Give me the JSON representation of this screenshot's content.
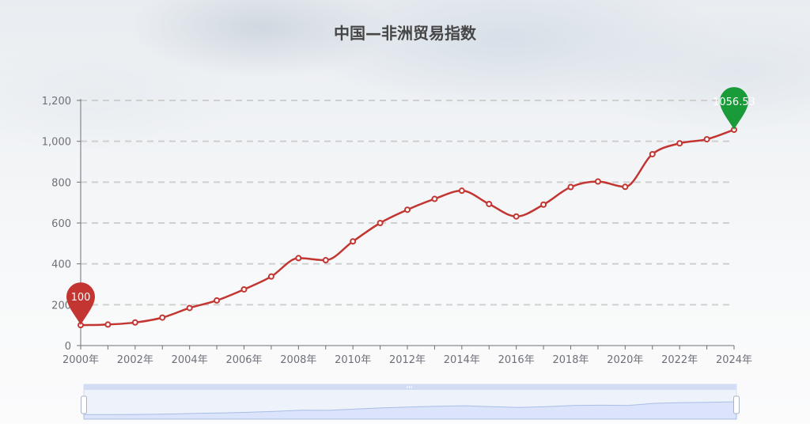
{
  "chart_data": {
    "type": "line",
    "title": "中国—非洲贸易指数",
    "categories": [
      "2000年",
      "2001年",
      "2002年",
      "2003年",
      "2004年",
      "2005年",
      "2006年",
      "2007年",
      "2008年",
      "2009年",
      "2010年",
      "2011年",
      "2012年",
      "2013年",
      "2014年",
      "2015年",
      "2016年",
      "2017年",
      "2018年",
      "2019年",
      "2020年",
      "2021年",
      "2022年",
      "2023年",
      "2024年"
    ],
    "x_tick_labels": [
      "2000年",
      "2002年",
      "2004年",
      "2006年",
      "2008年",
      "2010年",
      "2012年",
      "2014年",
      "2016年",
      "2018年",
      "2020年",
      "2022年",
      "2024年"
    ],
    "series": [
      {
        "values": [
          100,
          103,
          113,
          137,
          184,
          221,
          275,
          338,
          428,
          418,
          510,
          600,
          665,
          718,
          758,
          693,
          632,
          690,
          776,
          803,
          777,
          937,
          990,
          1010,
          1056.53
        ]
      }
    ],
    "y_ticks": [
      "0",
      "200",
      "400",
      "600",
      "800",
      "1,000",
      "1,200"
    ],
    "ylim": [
      0,
      1200
    ],
    "grid": true,
    "smooth": true,
    "line_color": "#c23531",
    "markers": [
      {
        "label": "100",
        "x_index": 0,
        "color": "#c23531"
      },
      {
        "label": "1056.53",
        "x_index": 24,
        "color": "#1a9b3a"
      }
    ],
    "data_zoom": {
      "range": [
        0,
        100
      ],
      "fill": "#dbe4fb"
    }
  }
}
